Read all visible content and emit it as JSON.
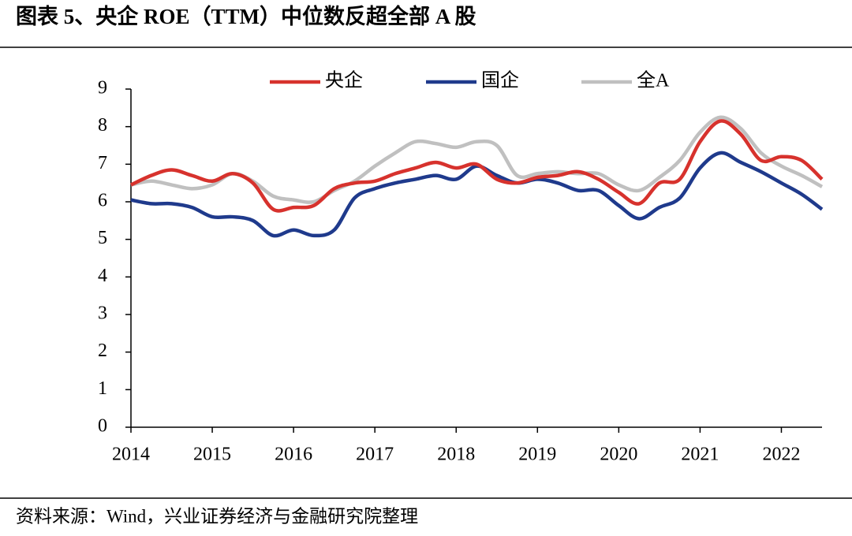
{
  "chart_data": {
    "type": "line",
    "title": "图表 5、央企 ROE（TTM）中位数反超全部 A 股",
    "source": "资料来源：Wind，兴业证券经济与金融研究院整理",
    "x": [
      2014,
      2014.25,
      2014.5,
      2014.75,
      2015,
      2015.25,
      2015.5,
      2015.75,
      2016,
      2016.25,
      2016.5,
      2016.75,
      2017,
      2017.25,
      2017.5,
      2017.75,
      2018,
      2018.25,
      2018.5,
      2018.75,
      2019,
      2019.25,
      2019.5,
      2019.75,
      2020,
      2020.25,
      2020.5,
      2020.75,
      2021,
      2021.25,
      2021.5,
      2021.75,
      2022,
      2022.25,
      2022.5
    ],
    "series": [
      {
        "name": "央企",
        "color": "#d7322d",
        "values": [
          6.45,
          6.7,
          6.85,
          6.7,
          6.55,
          6.75,
          6.5,
          5.8,
          5.85,
          5.9,
          6.35,
          6.5,
          6.55,
          6.75,
          6.9,
          7.05,
          6.9,
          7.0,
          6.6,
          6.5,
          6.65,
          6.7,
          6.8,
          6.6,
          6.25,
          5.95,
          6.5,
          6.6,
          7.6,
          8.15,
          7.8,
          7.1,
          7.2,
          7.1,
          6.6
        ]
      },
      {
        "name": "国企",
        "color": "#1f3a8c",
        "values": [
          6.05,
          5.95,
          5.95,
          5.85,
          5.6,
          5.6,
          5.5,
          5.1,
          5.25,
          5.1,
          5.25,
          6.1,
          6.35,
          6.5,
          6.6,
          6.7,
          6.6,
          6.95,
          6.7,
          6.5,
          6.6,
          6.5,
          6.3,
          6.3,
          5.9,
          5.55,
          5.85,
          6.1,
          6.9,
          7.3,
          7.05,
          6.8,
          6.5,
          6.2,
          5.8
        ]
      },
      {
        "name": "全A",
        "color": "#c0c0c0",
        "values": [
          6.45,
          6.55,
          6.45,
          6.35,
          6.45,
          6.75,
          6.55,
          6.15,
          6.05,
          6.0,
          6.3,
          6.55,
          6.95,
          7.3,
          7.6,
          7.55,
          7.45,
          7.6,
          7.5,
          6.7,
          6.75,
          6.8,
          6.75,
          6.75,
          6.45,
          6.3,
          6.65,
          7.1,
          7.85,
          8.25,
          7.95,
          7.3,
          6.95,
          6.7,
          6.4
        ]
      }
    ],
    "xlim": [
      2014,
      2022.5
    ],
    "xticks": [
      2014,
      2015,
      2016,
      2017,
      2018,
      2019,
      2020,
      2021,
      2022
    ],
    "ylim": [
      0,
      9
    ],
    "yticks": [
      0,
      1,
      2,
      3,
      4,
      5,
      6,
      7,
      8,
      9
    ],
    "legend": "top"
  }
}
